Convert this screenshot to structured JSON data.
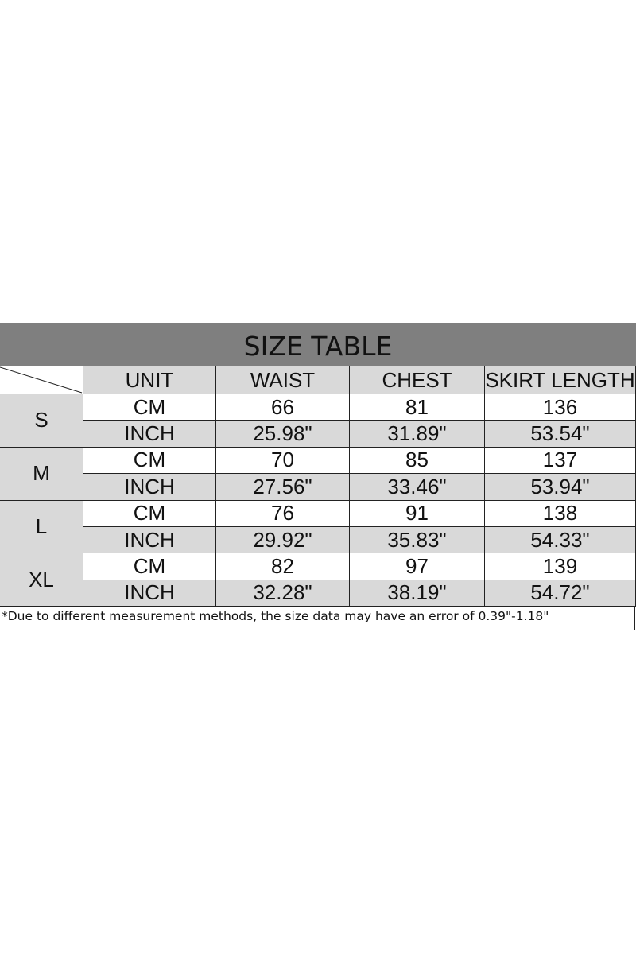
{
  "title": "SIZE TABLE",
  "headers": [
    "UNIT",
    "WAIST",
    "CHEST",
    "SKIRT LENGTH"
  ],
  "rows": [
    {
      "size": "S",
      "cm": [
        "CM",
        "66",
        "81",
        "136"
      ],
      "inch": [
        "INCH",
        "25.98\"",
        "31.89\"",
        "53.54\""
      ]
    },
    {
      "size": "M",
      "cm": [
        "CM",
        "70",
        "85",
        "137"
      ],
      "inch": [
        "INCH",
        "27.56\"",
        "33.46\"",
        "53.94\""
      ]
    },
    {
      "size": "L",
      "cm": [
        "CM",
        "76",
        "91",
        "138"
      ],
      "inch": [
        "INCH",
        "29.92\"",
        "35.83\"",
        "54.33\""
      ]
    },
    {
      "size": "XL",
      "cm": [
        "CM",
        "82",
        "97",
        "139"
      ],
      "inch": [
        "INCH",
        "32.28\"",
        "38.19\"",
        "54.72\""
      ]
    }
  ],
  "note": "*Due to different measurement methods, the size data may have an error of 0.39\"-1.18\"",
  "colors": {
    "title_bg": "#7f7f7f",
    "cell_gray": "#d9d9d9",
    "cell_white": "#ffffff"
  }
}
